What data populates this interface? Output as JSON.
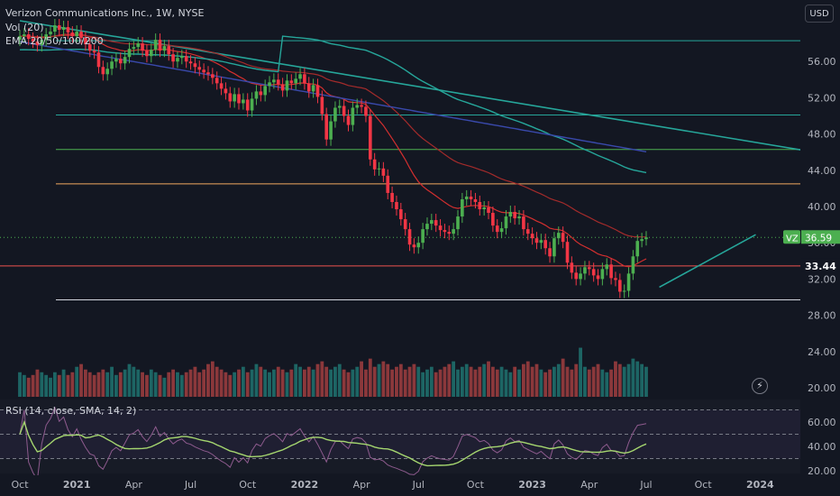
{
  "header": {
    "title": "Verizon Communications Inc., 1W, NYSE",
    "vol_label": "Vol (20)",
    "ema_label": "EMA 20/50/100/200",
    "rsi_label": "RSI (14, close, SMA, 14, 2)",
    "currency": "USD"
  },
  "icons": {
    "lightning": "lightning-icon"
  },
  "colors": {
    "background": "#131722",
    "up": "#26a69a",
    "down": "#ef5350",
    "up_candle": "#4caf50",
    "down_candle": "#f23645",
    "ema20": "#d32f2f",
    "ema50": "#a32b2b",
    "ema100": "#26a69a",
    "ema200": "#3949ab",
    "rsi": "#8e5b8e",
    "rsi_ma": "#a5d66f",
    "level_red": "#ef5350",
    "level_orange": "#f0a860",
    "level_green": "#4caf50",
    "level_teal": "#26a69a",
    "level_white": "#d1d4dc"
  },
  "chart_data": {
    "type": "candlestick",
    "symbol": "VZ",
    "interval": "1W",
    "exchange": "NYSE",
    "last_price": "36.59",
    "last_price_value": 36.59,
    "marked_level_label": "33.44",
    "marked_level": 33.44,
    "y_axis": {
      "range": [
        19.6,
        60.8
      ],
      "ticks": [
        "56.00",
        "52.00",
        "48.00",
        "44.00",
        "40.00",
        "36.00",
        "32.00",
        "28.00",
        "24.00",
        "20.00"
      ],
      "tick_values": [
        56,
        52,
        48,
        44,
        40,
        36,
        32,
        28,
        24,
        20
      ]
    },
    "x_axis": {
      "tick_labels": [
        "Oct",
        "2021",
        "Apr",
        "Jul",
        "Oct",
        "2022",
        "Apr",
        "Jul",
        "Oct",
        "2023",
        "Apr",
        "Jul",
        "Oct",
        "2024"
      ],
      "tick_weeks": [
        0,
        13,
        26,
        39,
        52,
        65,
        78,
        91,
        104,
        117,
        130,
        143,
        156,
        169
      ]
    },
    "horizontal_levels": [
      {
        "price": 58.3,
        "color": "level_teal"
      },
      {
        "price": 50.1,
        "color": "level_teal"
      },
      {
        "price": 46.3,
        "color": "level_green"
      },
      {
        "price": 42.5,
        "color": "level_orange"
      },
      {
        "price": 33.44,
        "color": "level_red"
      },
      {
        "price": 29.7,
        "color": "level_white"
      }
    ],
    "trendlines": [
      {
        "from": [
          0,
          60.5
        ],
        "to": [
          184,
          45.8
        ],
        "color": "level_teal"
      },
      {
        "from": [
          146,
          31.1
        ],
        "to": [
          168,
          36.9
        ],
        "color": "level_teal"
      }
    ],
    "weekly_close": [
      58.8,
      59.0,
      58.5,
      58.2,
      57.8,
      58.4,
      59.0,
      59.3,
      60.0,
      59.5,
      59.8,
      59.2,
      58.8,
      59.3,
      58.6,
      57.9,
      57.2,
      57.0,
      55.4,
      54.6,
      55.2,
      56.0,
      56.3,
      55.8,
      56.5,
      57.4,
      57.6,
      58.0,
      57.2,
      56.6,
      57.3,
      58.4,
      57.2,
      57.7,
      56.8,
      56.0,
      56.4,
      56.6,
      56.0,
      55.8,
      55.4,
      55.1,
      54.8,
      54.6,
      54.2,
      53.6,
      53.0,
      52.5,
      51.6,
      52.4,
      51.4,
      51.8,
      50.6,
      51.9,
      52.7,
      52.3,
      53.3,
      53.7,
      54.0,
      53.5,
      52.8,
      53.9,
      53.6,
      54.1,
      54.6,
      53.6,
      52.7,
      53.4,
      52.1,
      50.2,
      47.4,
      49.4,
      50.9,
      51.1,
      50.0,
      49.0,
      50.9,
      51.2,
      51.0,
      50.0,
      45.2,
      44.1,
      44.2,
      43.4,
      41.5,
      40.5,
      39.7,
      38.6,
      37.5,
      35.8,
      35.5,
      36.0,
      37.5,
      38.1,
      38.5,
      37.9,
      37.4,
      37.2,
      37.0,
      37.5,
      38.9,
      40.8,
      41.1,
      40.8,
      40.5,
      39.7,
      39.9,
      39.3,
      37.9,
      37.2,
      37.6,
      38.9,
      39.4,
      38.7,
      38.9,
      37.5,
      37.0,
      36.5,
      36.0,
      36.3,
      35.4,
      34.5,
      36.5,
      37.1,
      36.1,
      33.8,
      32.7,
      32.0,
      32.6,
      33.3,
      33.1,
      32.4,
      32.0,
      33.1,
      33.6,
      32.1,
      31.9,
      30.6,
      30.7,
      32.6,
      34.5,
      36.2,
      36.4,
      36.59
    ],
    "ema20": [
      57.2,
      57.5,
      57.6,
      57.7,
      57.8,
      57.8,
      57.8,
      57.9,
      57.9,
      58.0,
      58.0,
      58.0,
      58.0,
      57.9,
      57.8,
      57.6,
      57.4,
      57.1,
      56.9,
      56.8,
      56.8,
      56.9,
      57.0,
      57.1,
      57.1,
      57.1,
      57.0,
      56.9,
      56.8,
      56.6,
      56.4,
      56.1,
      55.9,
      55.6,
      55.3,
      55.0,
      54.7,
      54.4,
      54.1,
      53.8,
      53.6,
      53.4,
      53.3,
      53.2,
      53.2,
      53.1,
      53.0,
      52.9,
      52.8,
      52.6,
      52.3,
      51.9,
      51.5,
      51.3,
      51.0,
      50.7,
      50.3,
      49.9,
      49.4,
      48.9,
      48.3,
      47.7,
      47.1,
      46.4,
      45.7,
      44.9,
      44.1,
      43.3,
      42.6,
      41.9,
      41.3,
      40.7,
      40.1,
      39.6,
      39.2,
      38.8,
      38.5,
      38.3,
      38.2,
      38.1,
      38.1,
      38.0,
      37.9,
      37.8,
      37.7,
      37.5,
      37.3,
      37.1,
      36.9,
      36.6,
      36.3,
      36.0,
      35.7,
      35.4,
      35.1,
      34.9,
      34.6,
      34.4,
      34.1,
      33.9,
      33.8,
      33.9,
      34.1,
      34.3,
      34.5
    ],
    "ema100_tail": [
      45.0,
      44.2,
      43.2,
      42.4,
      41.6,
      41.0,
      40.6,
      40.5
    ],
    "volume": [
      9,
      8,
      7,
      8,
      10,
      9,
      8,
      7,
      9,
      8,
      10,
      8,
      9,
      11,
      12,
      10,
      9,
      8,
      9,
      10,
      9,
      11,
      8,
      9,
      10,
      12,
      11,
      10,
      9,
      8,
      10,
      9,
      8,
      7,
      9,
      10,
      9,
      8,
      9,
      10,
      11,
      9,
      10,
      12,
      13,
      11,
      10,
      9,
      8,
      9,
      10,
      11,
      9,
      10,
      12,
      11,
      10,
      9,
      10,
      11,
      10,
      9,
      10,
      12,
      11,
      10,
      11,
      10,
      12,
      13,
      11,
      10,
      11,
      12,
      10,
      9,
      10,
      11,
      13,
      10,
      14,
      11,
      12,
      13,
      12,
      10,
      11,
      12,
      10,
      11,
      12,
      11,
      9,
      10,
      11,
      9,
      10,
      11,
      12,
      13,
      10,
      11,
      12,
      11,
      10,
      11,
      12,
      13,
      11,
      10,
      11,
      10,
      9,
      11,
      10,
      12,
      13,
      11,
      12,
      10,
      9,
      10,
      11,
      12,
      14,
      11,
      10,
      12,
      18,
      11,
      10,
      11,
      12,
      10,
      9,
      10,
      13,
      12,
      11,
      12,
      14,
      13,
      12,
      11
    ],
    "rsi_axis": {
      "ticks": [
        "60.00",
        "40.00",
        "20.00"
      ],
      "tick_values": [
        60,
        40,
        20
      ],
      "levels": [
        70,
        50,
        30
      ]
    }
  }
}
